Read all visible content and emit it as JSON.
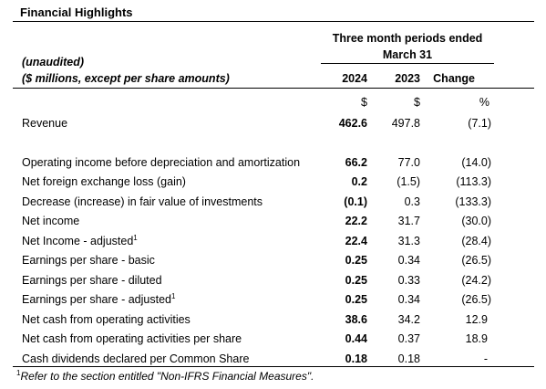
{
  "title": "Financial Highlights",
  "period": {
    "line1": "Three month periods ended",
    "line2": "March 31"
  },
  "notes": {
    "unaudited": "(unaudited)",
    "units_note": "($ millions, except per share amounts)"
  },
  "columns": {
    "y2024": "2024",
    "y2023": "2023",
    "change": "Change",
    "unit_2024": "$",
    "unit_2023": "$",
    "unit_change": "%"
  },
  "rows": [
    {
      "label": "Revenue",
      "sup": "",
      "v2024": "462.6",
      "v2023": "497.8",
      "change": "(7.1)"
    },
    {
      "label": "Operating income before depreciation and amortization",
      "sup": "",
      "v2024": "66.2",
      "v2023": "77.0",
      "change": "(14.0)"
    },
    {
      "label": "Net foreign exchange loss (gain)",
      "sup": "",
      "v2024": "0.2",
      "v2023": "(1.5)",
      "change": "(113.3)"
    },
    {
      "label": "Decrease (increase) in fair value of investments",
      "sup": "",
      "v2024": "(0.1)",
      "v2023": "0.3",
      "change": "(133.3)"
    },
    {
      "label": "Net income",
      "sup": "",
      "v2024": "22.2",
      "v2023": "31.7",
      "change": "(30.0)"
    },
    {
      "label": "Net Income - adjusted",
      "sup": "1",
      "v2024": "22.4",
      "v2023": "31.3",
      "change": "(28.4)"
    },
    {
      "label": "Earnings per share - basic",
      "sup": "",
      "v2024": "0.25",
      "v2023": "0.34",
      "change": "(26.5)"
    },
    {
      "label": "Earnings per share - diluted",
      "sup": "",
      "v2024": "0.25",
      "v2023": "0.33",
      "change": "(24.2)"
    },
    {
      "label": "Earnings per share - adjusted",
      "sup": "1",
      "v2024": "0.25",
      "v2023": "0.34",
      "change": "(26.5)"
    },
    {
      "label": "Net cash from operating activities",
      "sup": "",
      "v2024": "38.6",
      "v2023": "34.2",
      "change": "12.9"
    },
    {
      "label": "Net cash from operating activities per share",
      "sup": "",
      "v2024": "0.44",
      "v2023": "0.37",
      "change": "18.9"
    },
    {
      "label": "Cash dividends declared per Common Share",
      "sup": "",
      "v2024": "0.18",
      "v2023": "0.18",
      "change": "-"
    }
  ],
  "footnote": {
    "sup": "1",
    "text": "Refer to the section entitled \"Non-IFRS Financial Measures\"."
  }
}
